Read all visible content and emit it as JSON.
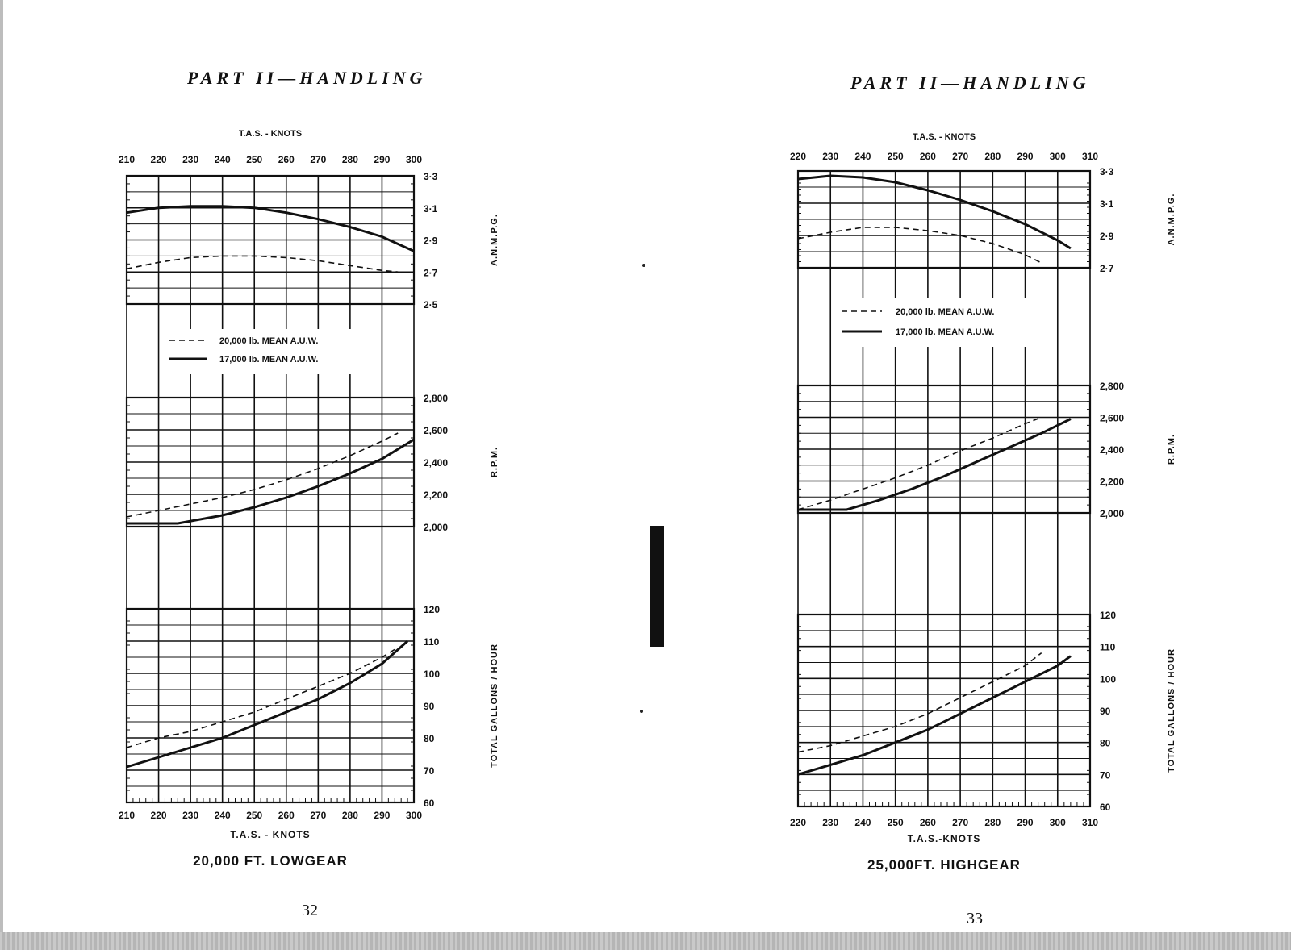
{
  "pages": [
    {
      "header": "PART II—HANDLING",
      "page_number": "32",
      "top_axis_title": "T.A.S. - KNOTS",
      "bottom_axis_title": "T.A.S. - KNOTS",
      "caption": "20,000 FT.  LOWGEAR",
      "right_axis_labels": {
        "mpg": "A.N.M.P.G.",
        "rpm": "R.P.M.",
        "gph": "TOTAL GALLONS / HOUR"
      },
      "legend": {
        "dashed": "20,000 lb.  MEAN  A.U.W.",
        "solid": "17,000 lb.  MEAN  A.U.W."
      }
    },
    {
      "header": "PART II—HANDLING",
      "page_number": "33",
      "top_axis_title": "T.A.S. - KNOTS",
      "bottom_axis_title": "T.A.S.-KNOTS",
      "caption": "25,000FT.  HIGHGEAR",
      "right_axis_labels": {
        "mpg": "A.N.M.P.G.",
        "rpm": "R.P.M.",
        "gph": "TOTAL GALLONS / HOUR"
      },
      "legend": {
        "dashed": "20,000 lb.  MEAN  A.U.W.",
        "solid": "17,000 lb.  MEAN  A.U.W."
      }
    }
  ],
  "chart_data": [
    {
      "type": "line",
      "title": "20,000 FT.  LOWGEAR",
      "xlabel": "T.A.S. - KNOTS",
      "x_ticks": [
        "210",
        "220",
        "230",
        "240",
        "250",
        "260",
        "270",
        "280",
        "290",
        "300"
      ],
      "xlim": [
        210,
        300
      ],
      "panels": [
        {
          "ylabel": "A.N.M.P.G.",
          "y_ticks": [
            "2·5",
            "2·7",
            "2·9",
            "3·1",
            "3·3"
          ],
          "ylim": [
            2.5,
            3.3
          ],
          "series": [
            {
              "name": "20,000 lb.  MEAN  A.U.W.",
              "style": "dashed",
              "x": [
                210,
                220,
                230,
                240,
                250,
                260,
                270,
                280,
                290,
                295
              ],
              "y": [
                2.72,
                2.76,
                2.79,
                2.8,
                2.8,
                2.79,
                2.77,
                2.74,
                2.71,
                2.7
              ]
            },
            {
              "name": "17,000 lb.  MEAN  A.U.W.",
              "style": "solid",
              "x": [
                210,
                220,
                230,
                240,
                250,
                260,
                270,
                280,
                290,
                300
              ],
              "y": [
                3.07,
                3.1,
                3.11,
                3.11,
                3.1,
                3.07,
                3.03,
                2.98,
                2.92,
                2.83
              ]
            }
          ]
        },
        {
          "ylabel": "R.P.M.",
          "y_ticks": [
            "2,000",
            "2,200",
            "2,400",
            "2,600",
            "2,800"
          ],
          "ylim": [
            2000,
            2800
          ],
          "series": [
            {
              "name": "20,000 lb.  MEAN  A.U.W.",
              "style": "dashed",
              "x": [
                210,
                220,
                230,
                240,
                250,
                260,
                270,
                280,
                290,
                295
              ],
              "y": [
                2060,
                2100,
                2140,
                2180,
                2230,
                2290,
                2360,
                2440,
                2530,
                2580
              ]
            },
            {
              "name": "17,000 lb.  MEAN  A.U.W.",
              "style": "solid",
              "x": [
                210,
                217,
                226,
                240,
                250,
                260,
                270,
                280,
                290,
                300
              ],
              "y": [
                2020,
                2020,
                2020,
                2070,
                2120,
                2180,
                2250,
                2330,
                2420,
                2540
              ]
            }
          ]
        },
        {
          "ylabel": "TOTAL GALLONS / HOUR",
          "y_ticks": [
            "60",
            "70",
            "80",
            "90",
            "100",
            "110",
            "120"
          ],
          "ylim": [
            60,
            120
          ],
          "series": [
            {
              "name": "20,000 lb.  MEAN  A.U.W.",
              "style": "dashed",
              "x": [
                210,
                220,
                230,
                240,
                250,
                260,
                270,
                280,
                290,
                295
              ],
              "y": [
                77,
                80,
                82,
                85,
                88,
                92,
                96,
                100,
                105,
                108
              ]
            },
            {
              "name": "17,000 lb.  MEAN  A.U.W.",
              "style": "solid",
              "x": [
                210,
                220,
                230,
                240,
                250,
                260,
                270,
                280,
                290,
                298
              ],
              "y": [
                71,
                74,
                77,
                80,
                84,
                88,
                92,
                97,
                103,
                110
              ]
            }
          ]
        }
      ]
    },
    {
      "type": "line",
      "title": "25,000FT.  HIGHGEAR",
      "xlabel": "T.A.S.-KNOTS",
      "x_ticks": [
        "220",
        "230",
        "240",
        "250",
        "260",
        "270",
        "280",
        "290",
        "300",
        "310"
      ],
      "xlim": [
        220,
        310
      ],
      "panels": [
        {
          "ylabel": "A.N.M.P.G.",
          "y_ticks": [
            "2·7",
            "2·9",
            "3·1",
            "3·3"
          ],
          "ylim": [
            2.7,
            3.3
          ],
          "series": [
            {
              "name": "20,000 lb.  MEAN  A.U.W.",
              "style": "dashed",
              "x": [
                220,
                230,
                240,
                250,
                260,
                270,
                280,
                290,
                295
              ],
              "y": [
                2.88,
                2.92,
                2.95,
                2.95,
                2.93,
                2.9,
                2.85,
                2.78,
                2.73
              ]
            },
            {
              "name": "17,000 lb.  MEAN  A.U.W.",
              "style": "solid",
              "x": [
                220,
                230,
                240,
                250,
                260,
                270,
                280,
                290,
                300,
                304
              ],
              "y": [
                3.25,
                3.27,
                3.26,
                3.23,
                3.18,
                3.12,
                3.05,
                2.97,
                2.87,
                2.82
              ]
            }
          ]
        },
        {
          "ylabel": "R.P.M.",
          "y_ticks": [
            "2,000",
            "2,200",
            "2,400",
            "2,600",
            "2,800"
          ],
          "ylim": [
            2000,
            2800
          ],
          "series": [
            {
              "name": "20,000 lb.  MEAN  A.U.W.",
              "style": "dashed",
              "x": [
                220,
                230,
                240,
                250,
                260,
                270,
                280,
                290,
                295
              ],
              "y": [
                2020,
                2080,
                2150,
                2220,
                2300,
                2390,
                2470,
                2560,
                2600
              ]
            },
            {
              "name": "17,000 lb.  MEAN  A.U.W.",
              "style": "solid",
              "x": [
                220,
                225,
                235,
                245,
                255,
                265,
                275,
                285,
                295,
                304
              ],
              "y": [
                2020,
                2020,
                2020,
                2080,
                2150,
                2230,
                2320,
                2410,
                2500,
                2590
              ]
            }
          ]
        },
        {
          "ylabel": "TOTAL GALLONS / HOUR",
          "y_ticks": [
            "60",
            "70",
            "80",
            "90",
            "100",
            "110",
            "120"
          ],
          "ylim": [
            60,
            120
          ],
          "series": [
            {
              "name": "20,000 lb.  MEAN  A.U.W.",
              "style": "dashed",
              "x": [
                220,
                230,
                240,
                250,
                260,
                270,
                280,
                290,
                295
              ],
              "y": [
                77,
                79,
                82,
                85,
                89,
                94,
                99,
                104,
                108
              ]
            },
            {
              "name": "17,000 lb.  MEAN  A.U.W.",
              "style": "solid",
              "x": [
                220,
                230,
                240,
                250,
                260,
                270,
                280,
                290,
                300,
                304
              ],
              "y": [
                70,
                73,
                76,
                80,
                84,
                89,
                94,
                99,
                104,
                107
              ]
            }
          ]
        }
      ]
    }
  ]
}
